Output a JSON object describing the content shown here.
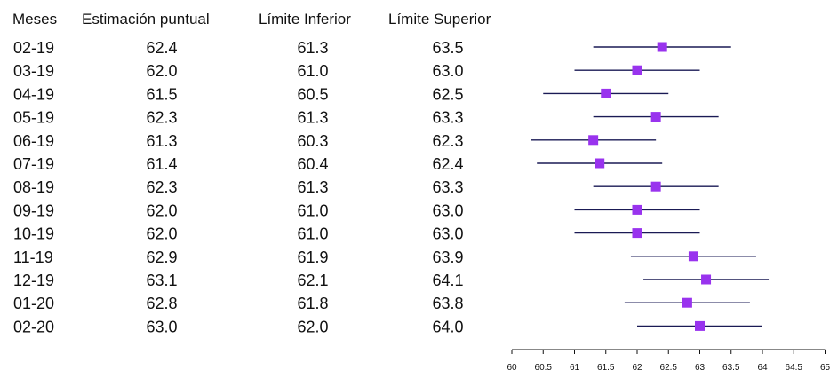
{
  "chart_data": {
    "type": "forest",
    "columns": [
      "Meses",
      "Estimación puntual",
      "Límite Inferior",
      "Límite Superior"
    ],
    "rows": [
      {
        "mes": "02-19",
        "estimate": "62.4",
        "lower": "61.3",
        "upper": "63.5"
      },
      {
        "mes": "03-19",
        "estimate": "62.0",
        "lower": "61.0",
        "upper": "63.0"
      },
      {
        "mes": "04-19",
        "estimate": "61.5",
        "lower": "60.5",
        "upper": "62.5"
      },
      {
        "mes": "05-19",
        "estimate": "62.3",
        "lower": "61.3",
        "upper": "63.3"
      },
      {
        "mes": "06-19",
        "estimate": "61.3",
        "lower": "60.3",
        "upper": "62.3"
      },
      {
        "mes": "07-19",
        "estimate": "61.4",
        "lower": "60.4",
        "upper": "62.4"
      },
      {
        "mes": "08-19",
        "estimate": "62.3",
        "lower": "61.3",
        "upper": "63.3"
      },
      {
        "mes": "09-19",
        "estimate": "62.0",
        "lower": "61.0",
        "upper": "63.0"
      },
      {
        "mes": "10-19",
        "estimate": "62.0",
        "lower": "61.0",
        "upper": "63.0"
      },
      {
        "mes": "11-19",
        "estimate": "62.9",
        "lower": "61.9",
        "upper": "63.9"
      },
      {
        "mes": "12-19",
        "estimate": "63.1",
        "lower": "62.1",
        "upper": "64.1"
      },
      {
        "mes": "01-20",
        "estimate": "62.8",
        "lower": "61.8",
        "upper": "63.8"
      },
      {
        "mes": "02-20",
        "estimate": "63.0",
        "lower": "62.0",
        "upper": "64.0"
      }
    ],
    "xlim": [
      60,
      65
    ],
    "x_ticks": [
      "60",
      "60.5",
      "61",
      "61.5",
      "62",
      "62.5",
      "63",
      "63.5",
      "64",
      "64.5",
      "65"
    ],
    "marker_color": "#9933ee",
    "line_color": "#1a1a55"
  }
}
